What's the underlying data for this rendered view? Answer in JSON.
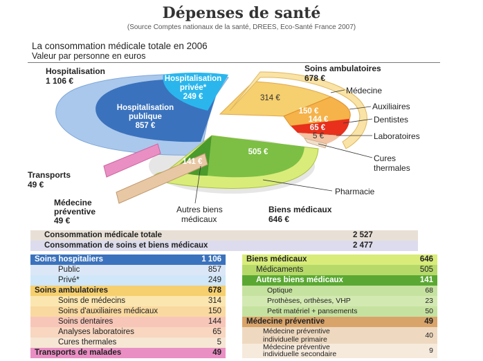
{
  "header": {
    "title": "Dépenses de santé",
    "source": "(Source Comptes nationaux de la santé, DREES, Eco-Santé France 2007)",
    "subtitle": "La consommation médicale totale en 2006",
    "subtitle2": "Valeur par personne en euros"
  },
  "colors": {
    "hospital_dark": "#3a72bd",
    "hospital_light": "#aac8ec",
    "hospital_private": "#2ab6ec",
    "ambulatory": "#f6cf6e",
    "auxiliaires": "#f5b34a",
    "dentistes": "#e8301d",
    "laboratoires": "#f3c3a4",
    "cures": "#f0dfcb",
    "pharmacie": "#d9ec7a",
    "autres_biens": "#7cbf44",
    "transports": "#ea8fc4",
    "prevention": "#e8c8a4",
    "total_row": "#e8e0d6",
    "soins_row": "#dcdcee"
  },
  "chart_data": {
    "type": "pie",
    "title": "La consommation médicale totale en 2006",
    "unit": "Valeur par personne en euros",
    "groups": [
      {
        "name": "Hospitalisation",
        "value": 1106,
        "slices": [
          {
            "name": "Hospitalisation publique",
            "value": 857
          },
          {
            "name": "Hospitalisation privée*",
            "value": 249
          }
        ]
      },
      {
        "name": "Soins ambulatoires",
        "value": 678,
        "slices": [
          {
            "name": "Médecine",
            "value": 314
          },
          {
            "name": "Auxiliaires",
            "value": 150
          },
          {
            "name": "Dentistes",
            "value": 144
          },
          {
            "name": "Laboratoires",
            "value": 65
          },
          {
            "name": "Cures thermales",
            "value": 5
          }
        ]
      },
      {
        "name": "Biens médicaux",
        "value": 646,
        "slices": [
          {
            "name": "Pharmacie",
            "value": 505
          },
          {
            "name": "Autres biens médicaux",
            "value": 141
          }
        ]
      },
      {
        "name": "Transports",
        "value": 49
      },
      {
        "name": "Médecine préventive",
        "value": 49
      }
    ]
  },
  "pie_labels": {
    "hospitalisation": "Hospitalisation",
    "hospitalisation_val": "1 106 €",
    "hosp_publique_1": "Hospitalisation",
    "hosp_publique_2": "publique",
    "hosp_publique_val": "857 €",
    "hosp_privee_1": "Hospitalisation",
    "hosp_privee_2": "privée*",
    "hosp_privee_val": "249 €",
    "soins_amb": "Soins ambulatoires",
    "soins_amb_val": "678 €",
    "medecine_val": "314 €",
    "auxiliaires_val": "150 €",
    "dentistes_val": "144 €",
    "laboratoires_val": "65 €",
    "cures_val": "5 €",
    "medecine": "Médecine",
    "auxiliaires": "Auxiliaires",
    "dentistes": "Dentistes",
    "laboratoires": "Laboratoires",
    "cures_1": "Cures",
    "cures_2": "thermales",
    "pharmacie": "Pharmacie",
    "pharmacie_val": "505 €",
    "autres_val": "141 €",
    "autres_1": "Autres biens",
    "autres_2": "médicaux",
    "biens": "Biens médicaux",
    "biens_val": "646 €",
    "transports": "Transports",
    "transports_val": "49 €",
    "prev_1": "Médecine",
    "prev_2": "préventive",
    "prev_val": "49 €"
  },
  "totals": [
    {
      "label": "Consommation médicale totale",
      "value": "2 527"
    },
    {
      "label": "Consommation de soins et biens médicaux",
      "value": "2 477"
    }
  ],
  "table_left": [
    {
      "label": "Soins hospitaliers",
      "value": "1 106"
    },
    {
      "label": "Public",
      "value": "857"
    },
    {
      "label": "Privé*",
      "value": "249"
    },
    {
      "label": "Soins ambulatoires",
      "value": "678"
    },
    {
      "label": "Soins de médecins",
      "value": "314"
    },
    {
      "label": "Soins d'auxiliaires médicaux",
      "value": "150"
    },
    {
      "label": "Soins dentaires",
      "value": "144"
    },
    {
      "label": "Analyses laboratoires",
      "value": "65"
    },
    {
      "label": "Cures thermales",
      "value": "5"
    },
    {
      "label": "Transports de malades",
      "value": "49"
    }
  ],
  "table_right": [
    {
      "label": "Biens médicaux",
      "value": "646"
    },
    {
      "label": "Médicaments",
      "value": "505"
    },
    {
      "label": "Autres biens médicaux",
      "value": "141"
    },
    {
      "label": "Optique",
      "value": "68"
    },
    {
      "label": "Prothèses, orthèses, VHP",
      "value": "23"
    },
    {
      "label": "Petit matériel + pansements",
      "value": "50"
    },
    {
      "label": "Médecine préventive",
      "value": "49"
    },
    {
      "label": "Médecine préventive",
      "label2": "individuelle primaire",
      "value": "40"
    },
    {
      "label": "Médecine préventive",
      "label2": "individuelle secondaire",
      "value": "9"
    }
  ]
}
